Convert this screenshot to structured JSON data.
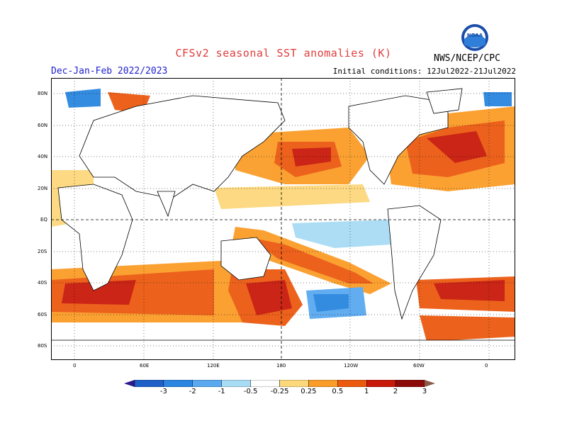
{
  "header": {
    "title": "CFSv2 seasonal SST anomalies (K)",
    "period": "Dec-Jan-Feb 2022/2023",
    "initial_conditions": "Initial conditions: 12Jul2022-21Jul2022",
    "agency": "NWS/NCEP/CPC",
    "logo_text": "NOAA"
  },
  "map": {
    "lat_labels": [
      "80N",
      "60N",
      "40N",
      "20N",
      "EQ",
      "20S",
      "40S",
      "60S",
      "80S"
    ],
    "lon_labels": [
      "0",
      "60E",
      "120E",
      "180",
      "120W",
      "60W",
      "0"
    ]
  },
  "colorbar": {
    "levels": [
      "-3",
      "-2",
      "-1",
      "-0.5",
      "-0.25",
      "0.25",
      "0.5",
      "1",
      "2",
      "3"
    ],
    "colors": [
      "#2a1a8c",
      "#1e5fc8",
      "#2a86e0",
      "#5aa8f0",
      "#a8dcf5",
      "#ffffff",
      "#fcd87c",
      "#fa9d28",
      "#ec5a10",
      "#c81a0a",
      "#8c0a0a",
      "#8c5a48"
    ]
  }
}
